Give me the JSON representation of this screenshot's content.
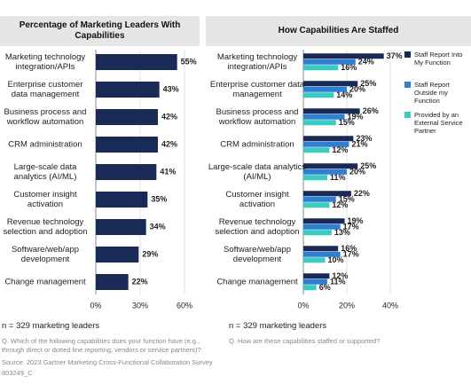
{
  "chart_data": [
    {
      "type": "bar",
      "orientation": "horizontal",
      "title": "Percentage of Marketing Leaders With Capabilities",
      "categories": [
        "Marketing technology integration/APIs",
        "Enterprise customer data management",
        "Business process and workflow automation",
        "CRM administration",
        "Large-scale data analytics (AI/ML)",
        "Customer insight activation",
        "Revenue technology selection and adoption",
        "Software/web/app development",
        "Change management"
      ],
      "values": [
        55,
        43,
        42,
        42,
        41,
        35,
        34,
        29,
        22
      ],
      "value_labels": [
        "55%",
        "43%",
        "42%",
        "42%",
        "41%",
        "35%",
        "34%",
        "29%",
        "22%"
      ],
      "color": "#1a2a57",
      "xlim": [
        0,
        60
      ],
      "xticks": [
        {
          "value": 0,
          "label": "0%"
        },
        {
          "value": 30,
          "label": "30%"
        },
        {
          "value": 60,
          "label": "60%"
        }
      ]
    },
    {
      "type": "grouped-bar",
      "orientation": "horizontal",
      "title": "How Capabilities Are Staffed",
      "categories": [
        "Marketing technology integration/APIs",
        "Enterprise customer data management",
        "Business process and workflow automation",
        "CRM administration",
        "Large-scale data analytics (AI/ML)",
        "Customer insight activation",
        "Revenue technology selection and adoption",
        "Software/web/app development",
        "Change management"
      ],
      "series": [
        {
          "name": "Staff Report Into My Function",
          "color": "#1a2a57",
          "values": [
            37,
            25,
            26,
            23,
            25,
            22,
            19,
            16,
            12
          ],
          "value_labels": [
            "37%",
            "25%",
            "26%",
            "23%",
            "25%",
            "22%",
            "19%",
            "16%",
            "12%"
          ]
        },
        {
          "name": "Staff Report Outside my Function",
          "color": "#2f7fd3",
          "values": [
            24,
            20,
            19,
            21,
            20,
            15,
            17,
            17,
            11
          ],
          "value_labels": [
            "24%",
            "20%",
            "19%",
            "21%",
            "20%",
            "15%",
            "17%",
            "17%",
            "11%"
          ]
        },
        {
          "name": "Provided by an External Service Partner",
          "color": "#3ccbc0",
          "values": [
            16,
            14,
            15,
            12,
            11,
            12,
            13,
            10,
            6
          ],
          "value_labels": [
            "16%",
            "14%",
            "15%",
            "12%",
            "11%",
            "12%",
            "13%",
            "10%",
            "6%"
          ]
        }
      ],
      "xlim": [
        0,
        40
      ],
      "xticks": [
        {
          "value": 0,
          "label": "0%"
        },
        {
          "value": 20,
          "label": "20%"
        },
        {
          "value": 40,
          "label": "40%"
        }
      ],
      "legend": "right"
    }
  ],
  "notes": {
    "left_sample": "n = 329 marketing leaders",
    "right_sample": "n = 329 marketing leaders",
    "left_question": "Q. Which of the following capabilities does your function have (e.g., through direct or dotted line reporting, vendors or service partners)?",
    "right_question": "Q. How are these capabilities staffed or supported?",
    "source": "Source: 2023 Gartner Marketing Cross-Functional Collaboration Survey",
    "code": "803249_C"
  }
}
